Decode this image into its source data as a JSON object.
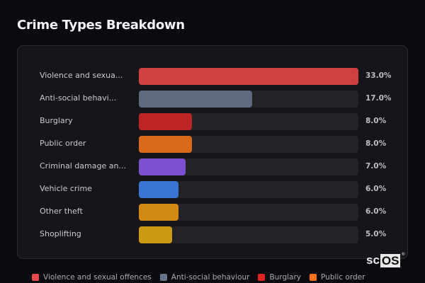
{
  "header": {
    "title": "Crime Types Breakdown"
  },
  "chart_data": {
    "type": "bar",
    "orientation": "horizontal",
    "title": "Crime Types Breakdown",
    "xlabel": "",
    "ylabel": "",
    "xlim": [
      0,
      33
    ],
    "grid": false,
    "legend_position": "bottom",
    "categories": [
      "Violence and sexual offences",
      "Anti-social behaviour",
      "Burglary",
      "Public order",
      "Criminal damage and arson",
      "Vehicle crime",
      "Other theft",
      "Shoplifting"
    ],
    "values": [
      33.0,
      17.0,
      8.0,
      8.0,
      7.0,
      6.0,
      6.0,
      5.0
    ],
    "unit": "%"
  },
  "rows": [
    {
      "label": "Violence and sexua...",
      "value_text": "33.0%",
      "value": 33.0,
      "color": "#d04041"
    },
    {
      "label": "Anti-social behavi...",
      "value_text": "17.0%",
      "value": 17.0,
      "color": "#5e6b7e"
    },
    {
      "label": "Burglary",
      "value_text": "8.0%",
      "value": 8.0,
      "color": "#bd2426"
    },
    {
      "label": "Public order",
      "value_text": "8.0%",
      "value": 8.0,
      "color": "#d96a1a"
    },
    {
      "label": "Criminal damage an...",
      "value_text": "7.0%",
      "value": 7.0,
      "color": "#7b4fcf"
    },
    {
      "label": "Vehicle crime",
      "value_text": "6.0%",
      "value": 6.0,
      "color": "#3a74d4"
    },
    {
      "label": "Other theft",
      "value_text": "6.0%",
      "value": 6.0,
      "color": "#d38a12"
    },
    {
      "label": "Shoplifting",
      "value_text": "5.0%",
      "value": 5.0,
      "color": "#c99a12"
    }
  ],
  "legend": [
    {
      "label": "Violence and sexual offences",
      "color": "#e5484d"
    },
    {
      "label": "Anti-social behaviour",
      "color": "#64748b"
    },
    {
      "label": "Burglary",
      "color": "#dc2626"
    },
    {
      "label": "Public order",
      "color": "#f97316"
    }
  ],
  "logo": {
    "sc": "sc",
    "os": "OS",
    "reg": "®"
  }
}
